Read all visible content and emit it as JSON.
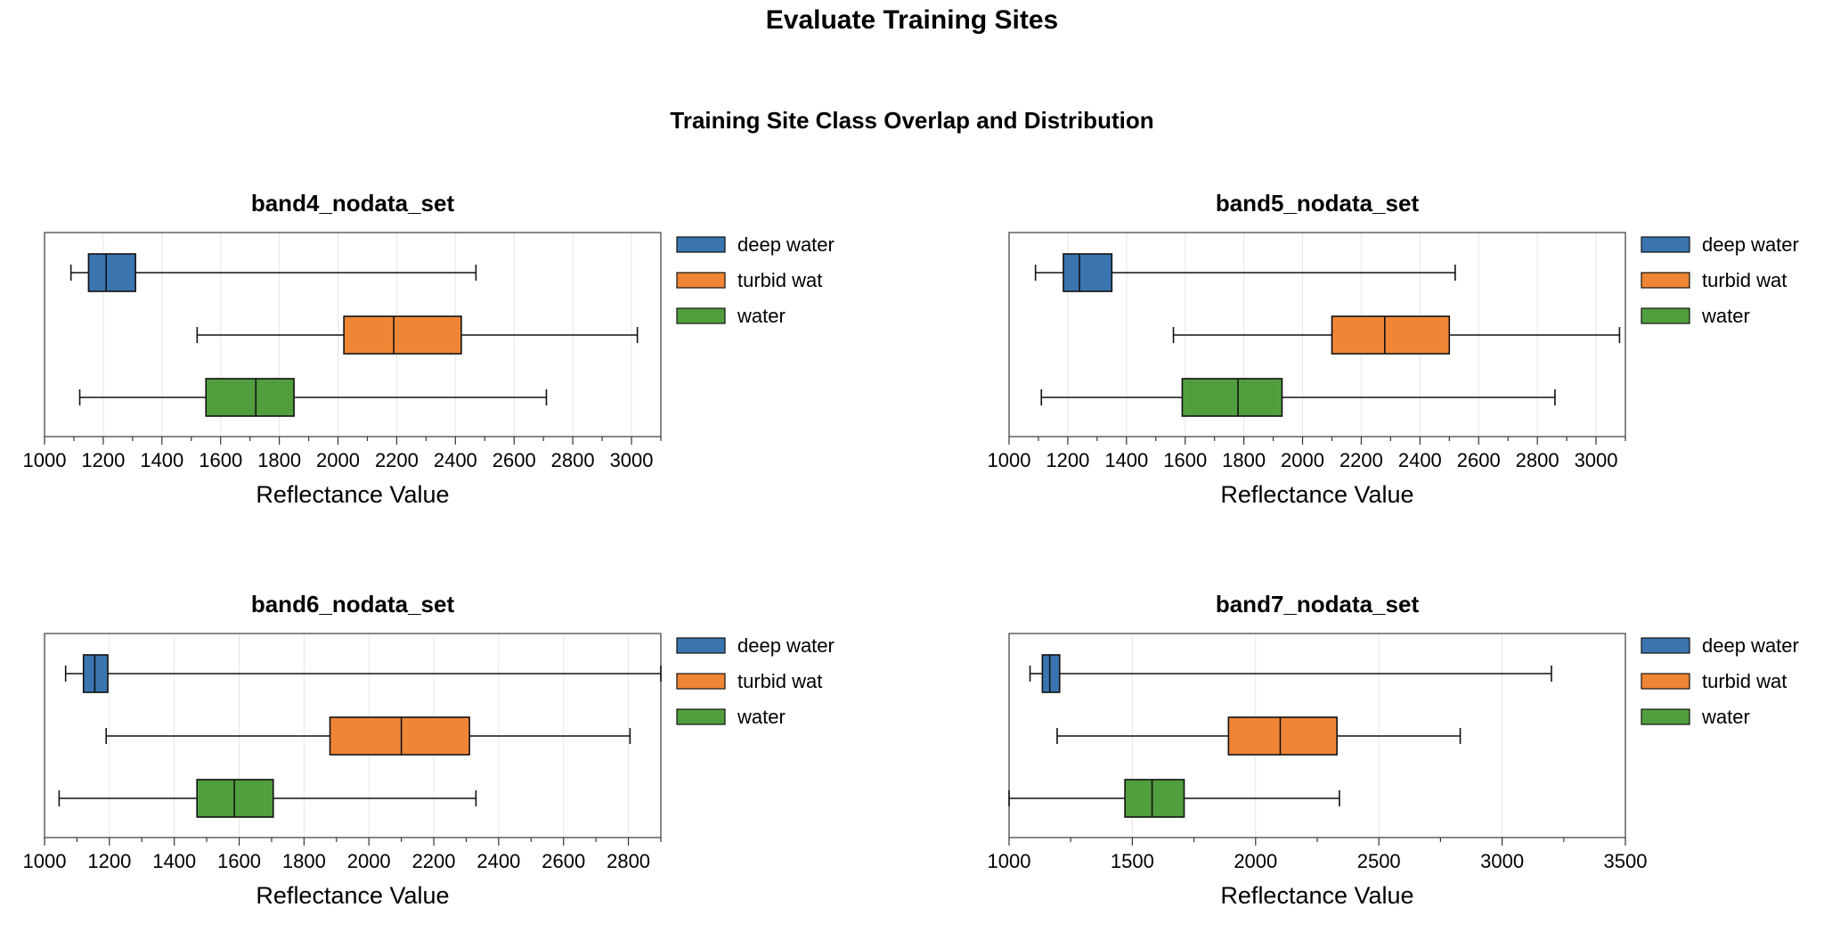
{
  "header": {
    "title": "Evaluate Training Sites",
    "subtitle": "Training Site Class Overlap and Distribution"
  },
  "colors": {
    "deep water": "#3a75b0",
    "turbid wat": "#ef8636",
    "water": "#519e3e"
  },
  "chart_data": [
    {
      "type": "boxplot",
      "title": "band4_nodata_set",
      "xlabel": "Reflectance Value",
      "ylabel": "",
      "xlim": [
        1000,
        3100
      ],
      "xticks": [
        1000,
        1200,
        1400,
        1600,
        1800,
        2000,
        2200,
        2400,
        2600,
        2800,
        3000
      ],
      "grid": "vertical",
      "legend": {
        "placement": "outside-right",
        "entries": [
          "deep water",
          "turbid wat",
          "water"
        ]
      },
      "series": [
        {
          "name": "deep water",
          "whisker_low": 1090,
          "q1": 1150,
          "median": 1210,
          "q3": 1310,
          "whisker_high": 2470
        },
        {
          "name": "turbid wat",
          "whisker_low": 1520,
          "q1": 2020,
          "median": 2190,
          "q3": 2420,
          "whisker_high": 3020
        },
        {
          "name": "water",
          "whisker_low": 1120,
          "q1": 1550,
          "median": 1720,
          "q3": 1850,
          "whisker_high": 2710
        }
      ]
    },
    {
      "type": "boxplot",
      "title": "band5_nodata_set",
      "xlabel": "Reflectance Value",
      "ylabel": "",
      "xlim": [
        1000,
        3100
      ],
      "xticks": [
        1000,
        1200,
        1400,
        1600,
        1800,
        2000,
        2200,
        2400,
        2600,
        2800,
        3000
      ],
      "grid": "vertical",
      "legend": {
        "placement": "outside-right",
        "entries": [
          "deep water",
          "turbid wat",
          "water"
        ]
      },
      "series": [
        {
          "name": "deep water",
          "whisker_low": 1090,
          "q1": 1185,
          "median": 1240,
          "q3": 1350,
          "whisker_high": 2520
        },
        {
          "name": "turbid wat",
          "whisker_low": 1560,
          "q1": 2100,
          "median": 2280,
          "q3": 2500,
          "whisker_high": 3080
        },
        {
          "name": "water",
          "whisker_low": 1110,
          "q1": 1590,
          "median": 1780,
          "q3": 1930,
          "whisker_high": 2860
        }
      ]
    },
    {
      "type": "boxplot",
      "title": "band6_nodata_set",
      "xlabel": "Reflectance Value",
      "ylabel": "",
      "xlim": [
        1000,
        2900
      ],
      "xticks": [
        1000,
        1200,
        1400,
        1600,
        1800,
        2000,
        2200,
        2400,
        2600,
        2800
      ],
      "grid": "vertical",
      "legend": {
        "placement": "outside-right",
        "entries": [
          "deep water",
          "turbid wat",
          "water"
        ]
      },
      "series": [
        {
          "name": "deep water",
          "whisker_low": 1065,
          "q1": 1120,
          "median": 1155,
          "q3": 1195,
          "whisker_high": 2900
        },
        {
          "name": "turbid wat",
          "whisker_low": 1190,
          "q1": 1880,
          "median": 2100,
          "q3": 2310,
          "whisker_high": 2805
        },
        {
          "name": "water",
          "whisker_low": 1045,
          "q1": 1470,
          "median": 1585,
          "q3": 1705,
          "whisker_high": 2330
        }
      ]
    },
    {
      "type": "boxplot",
      "title": "band7_nodata_set",
      "xlabel": "Reflectance Value",
      "ylabel": "",
      "xlim": [
        1000,
        3500
      ],
      "xticks": [
        1000,
        1500,
        2000,
        2500,
        3000,
        3500
      ],
      "grid": "vertical",
      "legend": {
        "placement": "outside-right",
        "entries": [
          "deep water",
          "turbid wat",
          "water"
        ]
      },
      "series": [
        {
          "name": "deep water",
          "whisker_low": 1085,
          "q1": 1135,
          "median": 1165,
          "q3": 1205,
          "whisker_high": 3200
        },
        {
          "name": "turbid wat",
          "whisker_low": 1195,
          "q1": 1890,
          "median": 2100,
          "q3": 2330,
          "whisker_high": 2830
        },
        {
          "name": "water",
          "whisker_low": 1000,
          "q1": 1470,
          "median": 1580,
          "q3": 1710,
          "whisker_high": 2340
        }
      ]
    }
  ]
}
